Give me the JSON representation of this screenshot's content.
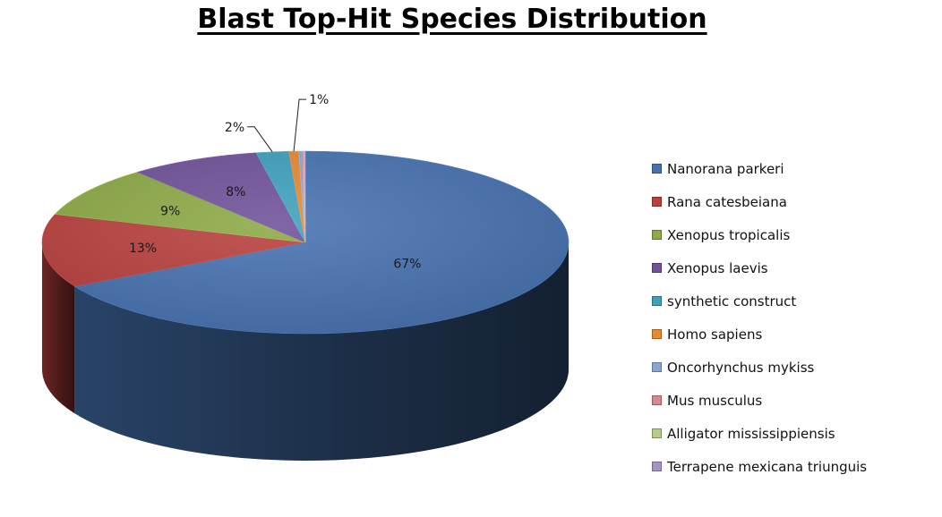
{
  "chart_data": {
    "type": "pie",
    "title": "Blast Top-Hit Species Distribution",
    "categories": [
      "Nanorana parkeri",
      "Rana catesbeiana",
      "Xenopus tropicalis",
      "Xenopus laevis",
      "synthetic construct",
      "Homo sapiens",
      "Oncorhynchus mykiss",
      "Mus musculus",
      "Alligator mississippiensis",
      "Terrapene mexicana triunguis"
    ],
    "values": [
      67,
      13,
      9,
      8,
      2,
      0.6,
      0.2,
      0.1,
      0.05,
      0.05
    ],
    "data_labels": [
      "67%",
      "13%",
      "9%",
      "8%",
      "2%",
      "1%",
      "",
      "",
      "",
      ""
    ],
    "colors": [
      "#4672B0",
      "#B9403D",
      "#8CAA45",
      "#70519A",
      "#3FA0BD",
      "#E8882F",
      "#8AA7D4",
      "#D8888A",
      "#B7CC88",
      "#A694C2"
    ],
    "legend_position": "right",
    "style": "3d-exploded-none"
  }
}
